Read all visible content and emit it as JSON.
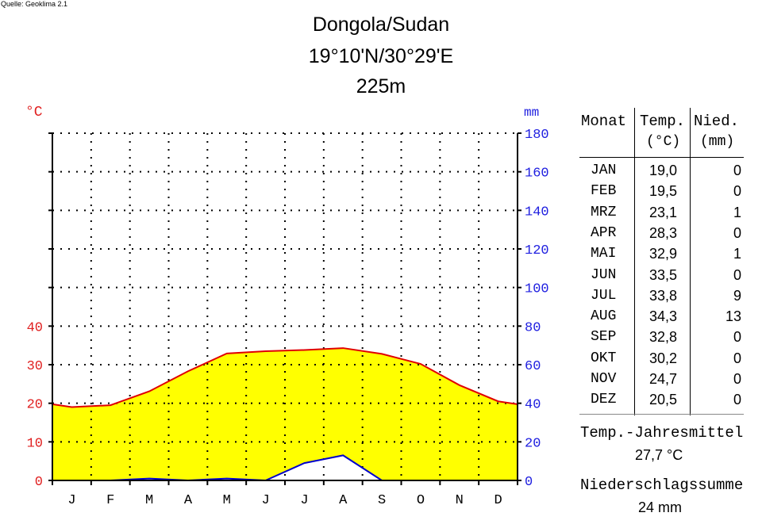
{
  "source": "Quelle: Geoklima 2.1",
  "title_lines": [
    "Dongola/Sudan",
    "19°10'N/30°29'E",
    "225m"
  ],
  "left_unit": "°C",
  "right_unit": "mm",
  "colors": {
    "temperature": "#e00000",
    "precipitation": "#0000cc",
    "arid_fill": "#ffff00",
    "left_axis_text": "#e02020",
    "right_axis_text": "#2020e0"
  },
  "chart_data": {
    "type": "line",
    "categories": [
      "J",
      "F",
      "M",
      "A",
      "M",
      "J",
      "J",
      "A",
      "S",
      "O",
      "N",
      "D"
    ],
    "series": [
      {
        "name": "Temp.",
        "unit": "°C",
        "values": [
          19.0,
          19.5,
          23.1,
          28.3,
          32.9,
          33.5,
          33.8,
          34.3,
          32.8,
          30.2,
          24.7,
          20.5
        ]
      },
      {
        "name": "Nied.",
        "unit": "mm",
        "values": [
          0,
          0,
          1,
          0,
          1,
          0,
          9,
          13,
          0,
          0,
          0,
          0
        ]
      }
    ],
    "left_ticks": [
      "0",
      "10",
      "20",
      "30",
      "40"
    ],
    "right_ticks": [
      "0",
      "20",
      "40",
      "60",
      "80",
      "100",
      "120",
      "140",
      "160",
      "180"
    ],
    "temp_range": [
      0,
      90
    ],
    "precip_range": [
      0,
      180
    ],
    "grid": true
  },
  "table": {
    "headers": [
      [
        "Monat",
        ""
      ],
      [
        "Temp.",
        "(°C)"
      ],
      [
        "Nied.",
        "(mm)"
      ]
    ],
    "rows": [
      [
        "JAN",
        "19,0",
        "0"
      ],
      [
        "FEB",
        "19,5",
        "0"
      ],
      [
        "MRZ",
        "23,1",
        "1"
      ],
      [
        "APR",
        "28,3",
        "0"
      ],
      [
        "MAI",
        "32,9",
        "1"
      ],
      [
        "JUN",
        "33,5",
        "0"
      ],
      [
        "JUL",
        "33,8",
        "9"
      ],
      [
        "AUG",
        "34,3",
        "13"
      ],
      [
        "SEP",
        "32,8",
        "0"
      ],
      [
        "OKT",
        "30,2",
        "0"
      ],
      [
        "NOV",
        "24,7",
        "0"
      ],
      [
        "DEZ",
        "20,5",
        "0"
      ]
    ]
  },
  "summary": {
    "temp_label": "Temp.-Jahresmittel",
    "temp_value": "27,7 °C",
    "precip_label": "Niederschlagssumme",
    "precip_value": "24 mm"
  }
}
